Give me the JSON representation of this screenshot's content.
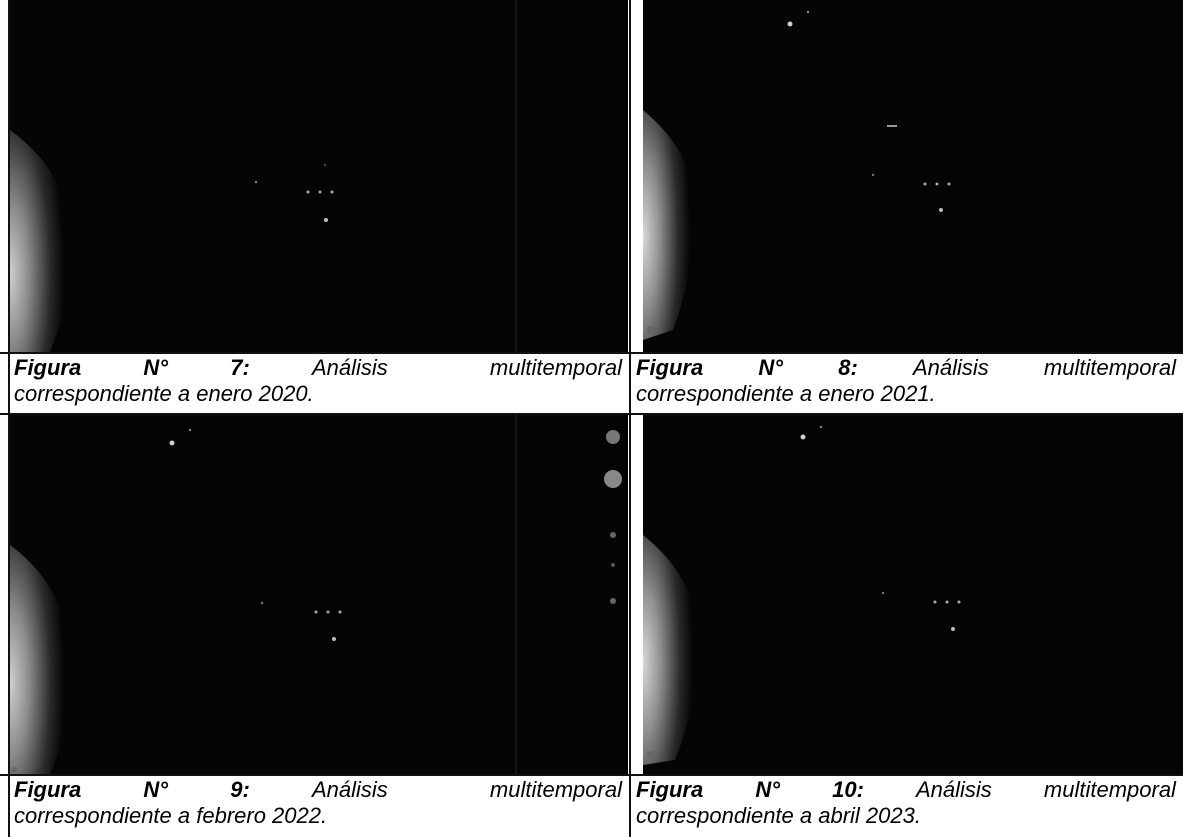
{
  "figures": [
    {
      "label": "Figura",
      "num": "N°",
      "id": "7:",
      "title": "Análisis",
      "tail": "multitemporal",
      "line2": "correspondiente a enero 2020."
    },
    {
      "label": "Figura",
      "num": "N°",
      "id": "8:",
      "title": "Análisis",
      "tail": "multitemporal",
      "line2": "correspondiente a enero 2021."
    },
    {
      "label": "Figura",
      "num": "N°",
      "id": "9:",
      "title": "Análisis",
      "tail": "multitemporal",
      "line2": "correspondiente a febrero 2022."
    },
    {
      "label": "Figura",
      "num": "N°",
      "id": "10:",
      "title": "Análisis",
      "tail": "multitemporal",
      "line2": "correspondiente a abril 2023."
    }
  ]
}
